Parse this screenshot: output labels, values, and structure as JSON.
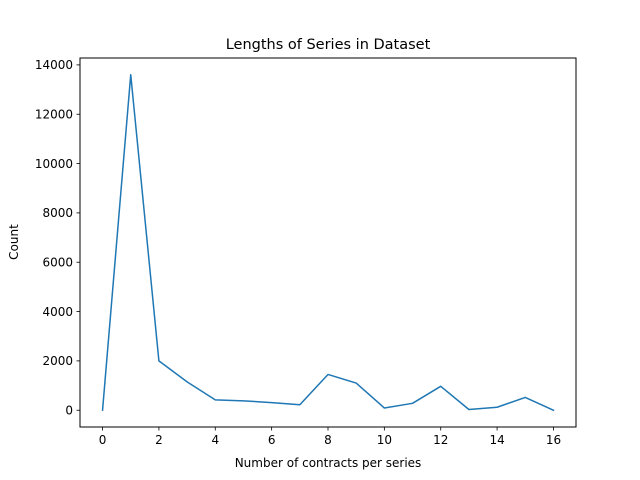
{
  "chart_data": {
    "type": "line",
    "title": "Lengths of Series in Dataset",
    "xlabel": "Number of contracts per series",
    "ylabel": "Count",
    "xlim": [
      -0.8,
      16.8
    ],
    "ylim": [
      -680,
      14280
    ],
    "xticks": [
      0,
      2,
      4,
      6,
      8,
      10,
      12,
      14,
      16
    ],
    "yticks": [
      0,
      2000,
      4000,
      6000,
      8000,
      10000,
      12000,
      14000
    ],
    "grid": false,
    "series": [
      {
        "name": "",
        "color": "#1f77b4",
        "x": [
          0,
          1,
          2,
          3,
          4,
          5,
          6,
          7,
          8,
          9,
          10,
          11,
          12,
          13,
          14,
          15,
          16
        ],
        "y": [
          0,
          13600,
          2000,
          1150,
          420,
          380,
          310,
          220,
          1450,
          1100,
          90,
          280,
          970,
          30,
          120,
          520,
          0
        ]
      }
    ]
  }
}
